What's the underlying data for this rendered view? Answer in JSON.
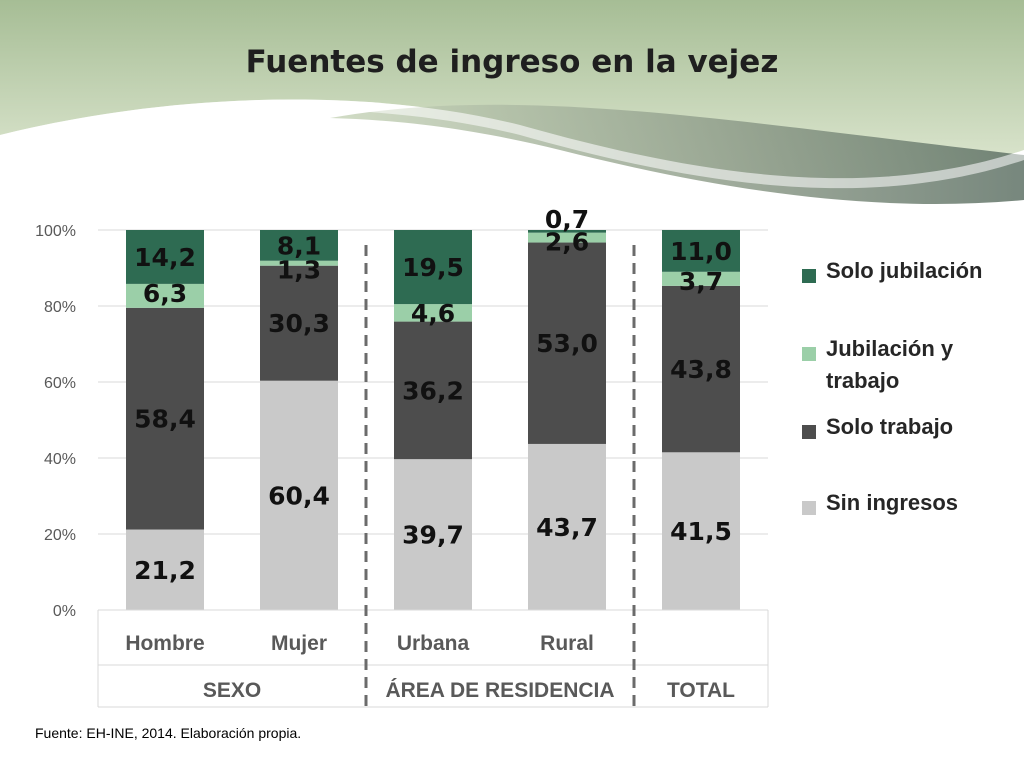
{
  "title": "Fuentes de ingreso en la vejez",
  "source": "Fuente: EH-INE, 2014. Elaboración propia.",
  "colors": {
    "solo_jubilacion": "#2e6b52",
    "jubilacion_y_trabajo": "#9bcfa8",
    "solo_trabajo": "#4d4d4d",
    "sin_ingresos": "#c9c9c9"
  },
  "chart_data": {
    "type": "bar",
    "stacked": true,
    "percent": true,
    "categories": [
      "Hombre",
      "Mujer",
      "Urbana",
      "Rural",
      ""
    ],
    "groups": [
      {
        "label": "SEXO",
        "categories": [
          "Hombre",
          "Mujer"
        ]
      },
      {
        "label": "ÁREA DE RESIDENCIA",
        "categories": [
          "Urbana",
          "Rural"
        ]
      },
      {
        "label": "TOTAL",
        "categories": [
          ""
        ]
      }
    ],
    "series": [
      {
        "name": "Sin ingresos",
        "key": "sin_ingresos",
        "values": [
          21.2,
          60.4,
          39.7,
          43.7,
          41.5
        ],
        "labels": [
          "21,2",
          "60,4",
          "39,7",
          "43,7",
          "41,5"
        ]
      },
      {
        "name": "Solo trabajo",
        "key": "solo_trabajo",
        "values": [
          58.4,
          30.3,
          36.2,
          53.0,
          43.8
        ],
        "labels": [
          "58,4",
          "30,3",
          "36,2",
          "53,0",
          "43,8"
        ]
      },
      {
        "name": "Jubilación y trabajo",
        "key": "jubilacion_y_trabajo",
        "values": [
          6.3,
          1.3,
          4.6,
          2.6,
          3.7
        ],
        "labels": [
          "6,3",
          "1,3",
          "4,6",
          "2,6",
          "3,7"
        ]
      },
      {
        "name": "Solo jubilación",
        "key": "solo_jubilacion",
        "values": [
          14.2,
          8.1,
          19.5,
          0.7,
          11.0
        ],
        "labels": [
          "14,2",
          "8,1",
          "19,5",
          "0,7",
          "11,0"
        ]
      }
    ],
    "ylim": [
      0,
      100
    ],
    "yticks": [
      "0%",
      "20%",
      "40%",
      "60%",
      "80%",
      "100%"
    ],
    "grid": true,
    "legend": "right",
    "legend_entries": [
      "Solo jubilación",
      "Jubilación y trabajo",
      "Solo trabajo",
      "Sin ingresos"
    ]
  }
}
